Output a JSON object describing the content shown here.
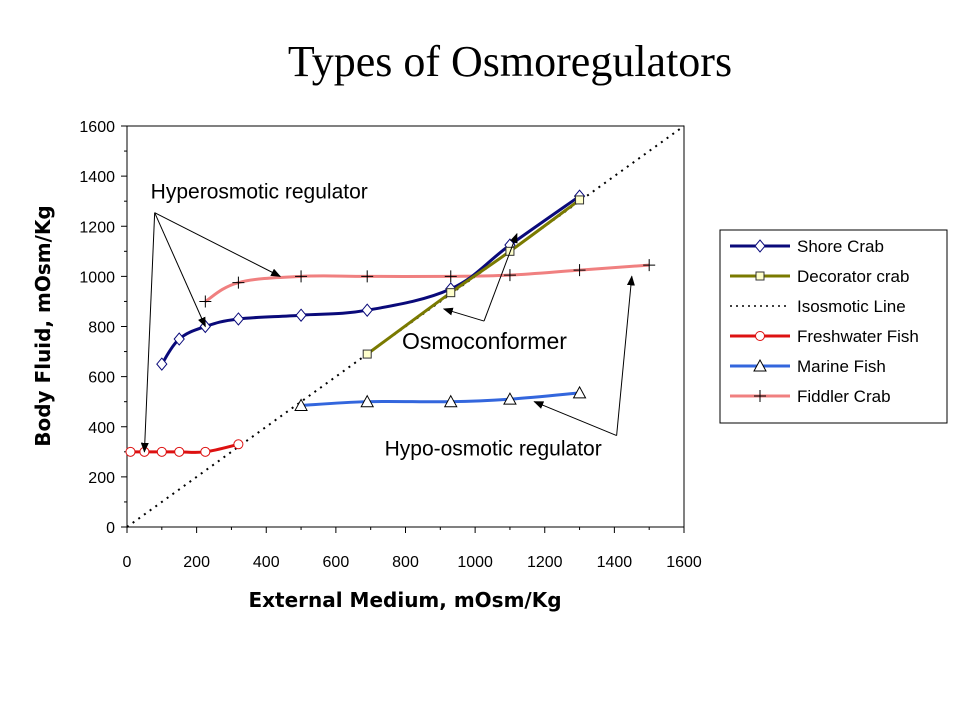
{
  "title": "Types of Osmoregulators",
  "chart_data": {
    "type": "line",
    "xlabel": "External Medium, mOsm/Kg",
    "ylabel": "Body Fluid, mOsm/Kg",
    "xlim": [
      0,
      1600
    ],
    "ylim": [
      0,
      1600
    ],
    "xticks": [
      0,
      200,
      400,
      600,
      800,
      1000,
      1200,
      1400,
      1600
    ],
    "yticks": [
      0,
      200,
      400,
      600,
      800,
      1000,
      1200,
      1400,
      1600
    ],
    "grid": false,
    "legend_position": "right",
    "series": [
      {
        "name": "Shore Crab",
        "color": "#0a0a7a",
        "marker": "diamond",
        "marker_fill": "#ffffff",
        "style": "solid",
        "points": [
          [
            100,
            650
          ],
          [
            150,
            750
          ],
          [
            225,
            800
          ],
          [
            320,
            830
          ],
          [
            500,
            845
          ],
          [
            690,
            865
          ],
          [
            930,
            950
          ],
          [
            1100,
            1125
          ],
          [
            1300,
            1320
          ]
        ]
      },
      {
        "name": "Decorator crab",
        "color": "#7a7a00",
        "marker": "square",
        "marker_fill": "#ffffcc",
        "style": "solid",
        "points": [
          [
            690,
            690
          ],
          [
            930,
            935
          ],
          [
            1100,
            1100
          ],
          [
            1300,
            1305
          ]
        ]
      },
      {
        "name": "Isosmotic Line",
        "color": "#000000",
        "marker": "none",
        "style": "dotted",
        "points": [
          [
            0,
            0
          ],
          [
            1600,
            1600
          ]
        ]
      },
      {
        "name": "Freshwater Fish",
        "color": "#dd1111",
        "marker": "circle",
        "marker_fill": "#ffffff",
        "style": "solid",
        "points": [
          [
            10,
            300
          ],
          [
            50,
            300
          ],
          [
            100,
            300
          ],
          [
            150,
            300
          ],
          [
            225,
            300
          ],
          [
            320,
            330
          ]
        ]
      },
      {
        "name": "Marine Fish",
        "color": "#3366dd",
        "marker": "triangle",
        "marker_fill": "#ffffff",
        "style": "solid",
        "points": [
          [
            500,
            485
          ],
          [
            690,
            500
          ],
          [
            930,
            500
          ],
          [
            1100,
            510
          ],
          [
            1300,
            535
          ]
        ]
      },
      {
        "name": "Fiddler Crab",
        "color": "#f08080",
        "marker": "plus",
        "style": "solid",
        "points": [
          [
            225,
            900
          ],
          [
            320,
            975
          ],
          [
            500,
            1000
          ],
          [
            690,
            1000
          ],
          [
            930,
            1000
          ],
          [
            1100,
            1005
          ],
          [
            1300,
            1025
          ],
          [
            1500,
            1045
          ]
        ]
      }
    ],
    "annotations": [
      {
        "text": "Hyperosmotic regulator",
        "label_at": [
          68,
          1310
        ],
        "targets": [
          [
            50,
            300
          ],
          [
            225,
            800
          ],
          [
            440,
            1000
          ]
        ]
      },
      {
        "text": "Osmoconformer",
        "label_at": [
          790,
          710
        ],
        "targets": [
          [
            910,
            870
          ],
          [
            1120,
            1170
          ]
        ]
      },
      {
        "text": "Hypo-osmotic regulator",
        "label_at": [
          740,
          285
        ],
        "targets": [
          [
            1170,
            500
          ],
          [
            1450,
            1000
          ]
        ]
      }
    ]
  }
}
